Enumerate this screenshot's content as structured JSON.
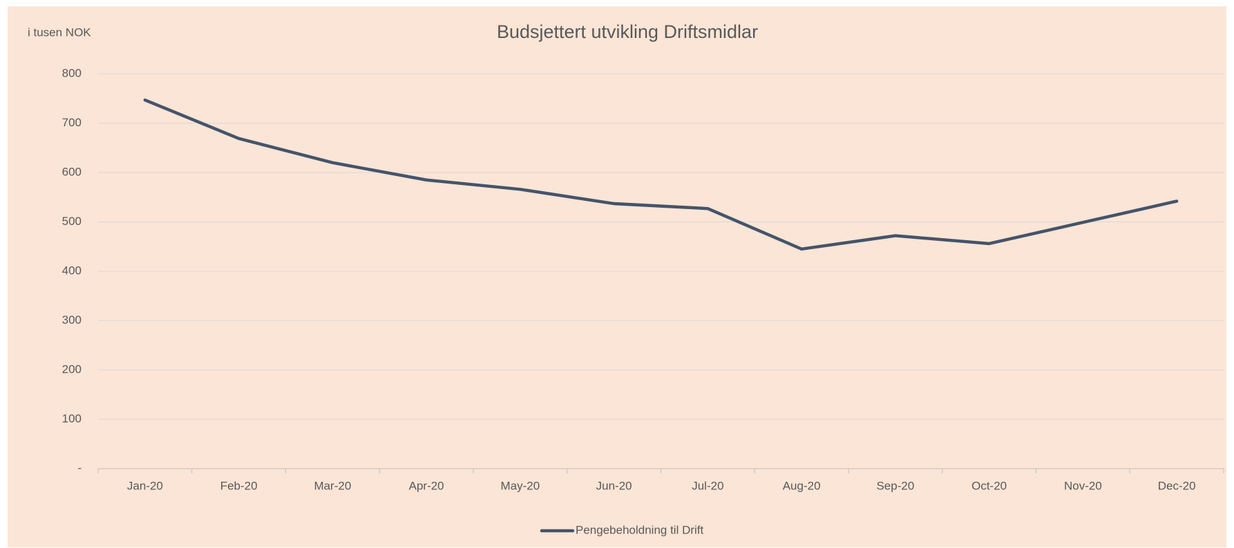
{
  "chart_data": {
    "type": "line",
    "title": "Budsjettert utvikling Driftsmidlar",
    "y_label": "i tusen NOK",
    "categories": [
      "Jan-20",
      "Feb-20",
      "Mar-20",
      "Apr-20",
      "May-20",
      "Jun-20",
      "Jul-20",
      "Aug-20",
      "Sep-20",
      "Oct-20",
      "Nov-20",
      "Dec-20"
    ],
    "series": [
      {
        "name": "Pengebeholdning til Drift",
        "color": "#44546a",
        "values": [
          747,
          669,
          620,
          585,
          566,
          537,
          527,
          445,
          472,
          456,
          499,
          542
        ]
      }
    ],
    "ylim": [
      0,
      800
    ],
    "yticks": [
      {
        "value": 0,
        "label": "-"
      },
      100,
      200,
      300,
      400,
      500,
      600,
      700,
      800
    ],
    "grid": true,
    "legend": "bottom"
  }
}
